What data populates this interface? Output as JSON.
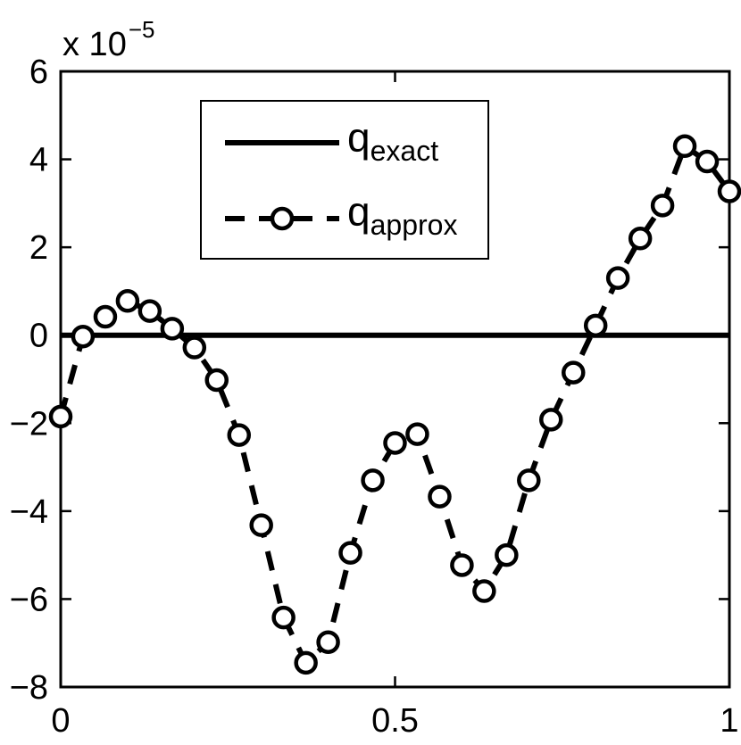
{
  "chart_data": {
    "type": "line",
    "title": "",
    "xlabel": "",
    "ylabel": "",
    "y_multiplier": "x 10",
    "y_exponent": "−5",
    "xlim": [
      0,
      1
    ],
    "ylim": [
      -8,
      6
    ],
    "x_ticks": [
      0,
      0.5,
      1
    ],
    "x_tick_labels": [
      "0",
      "0.5",
      "1"
    ],
    "y_ticks": [
      -8,
      -6,
      -4,
      -2,
      0,
      2,
      4,
      6
    ],
    "y_tick_labels": [
      "−8",
      "−6",
      "−4",
      "−2",
      "0",
      "2",
      "4",
      "6"
    ],
    "grid": false,
    "legend": {
      "position": "top-center",
      "entries": [
        {
          "base": "q",
          "subscript": "exact"
        },
        {
          "base": "q",
          "subscript": "approx"
        }
      ]
    },
    "series": [
      {
        "style": "solid",
        "x": [
          0,
          1
        ],
        "values": [
          0,
          0
        ]
      },
      {
        "style": "dashed-circle",
        "x": [
          0.0,
          0.0333,
          0.0667,
          0.1,
          0.1333,
          0.1667,
          0.2,
          0.2333,
          0.2667,
          0.3,
          0.3333,
          0.3667,
          0.4,
          0.4333,
          0.4667,
          0.5,
          0.5333,
          0.5667,
          0.6,
          0.6333,
          0.6667,
          0.7,
          0.7333,
          0.7667,
          0.8,
          0.8333,
          0.8667,
          0.9,
          0.9333,
          0.9667,
          1.0
        ],
        "values": [
          -1.85,
          -0.03,
          0.42,
          0.78,
          0.55,
          0.15,
          -0.28,
          -1.02,
          -2.27,
          -4.32,
          -6.42,
          -7.45,
          -6.98,
          -4.95,
          -3.3,
          -2.45,
          -2.25,
          -3.67,
          -5.23,
          -5.82,
          -5.0,
          -3.3,
          -1.92,
          -0.85,
          0.22,
          1.3,
          2.2,
          2.95,
          4.3,
          3.95,
          3.27
        ]
      }
    ]
  }
}
